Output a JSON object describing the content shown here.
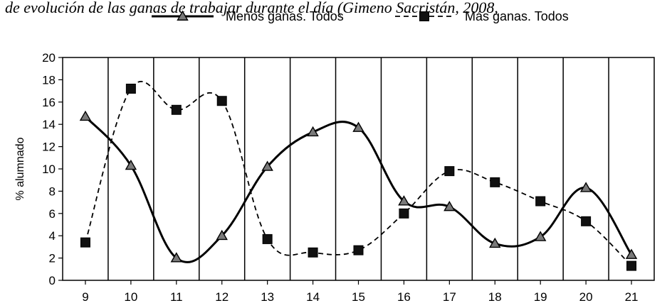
{
  "caption": ". de evolución de las ganas de trabajar durante el día (Gimeno Sacristán, 2008,",
  "chart_data": {
    "type": "line",
    "title": "",
    "xlabel": "",
    "ylabel": "% alumnado",
    "categories": [
      "9",
      "10",
      "11",
      "12",
      "13",
      "14",
      "15",
      "16",
      "17",
      "18",
      "19",
      "20",
      "21"
    ],
    "ylim": [
      0,
      20
    ],
    "yticks": [
      "0",
      "2",
      "4",
      "6",
      "8",
      "10",
      "12",
      "14",
      "16",
      "18",
      "20"
    ],
    "grid": "vertical",
    "legend_position": "top",
    "series": [
      {
        "name": "Menos ganas. Todos",
        "values": [
          14.7,
          10.3,
          2.0,
          4.0,
          10.2,
          13.3,
          13.7,
          7.1,
          6.6,
          3.3,
          3.9,
          8.3,
          2.3
        ],
        "line_style": "solid",
        "marker": "triangle",
        "color": "#000000"
      },
      {
        "name": "Más ganas. Todos",
        "values": [
          3.4,
          17.2,
          15.3,
          16.1,
          3.7,
          2.5,
          2.7,
          6.0,
          9.8,
          8.8,
          7.1,
          5.3,
          1.3
        ],
        "line_style": "dashed",
        "marker": "square",
        "color": "#000000"
      }
    ]
  }
}
